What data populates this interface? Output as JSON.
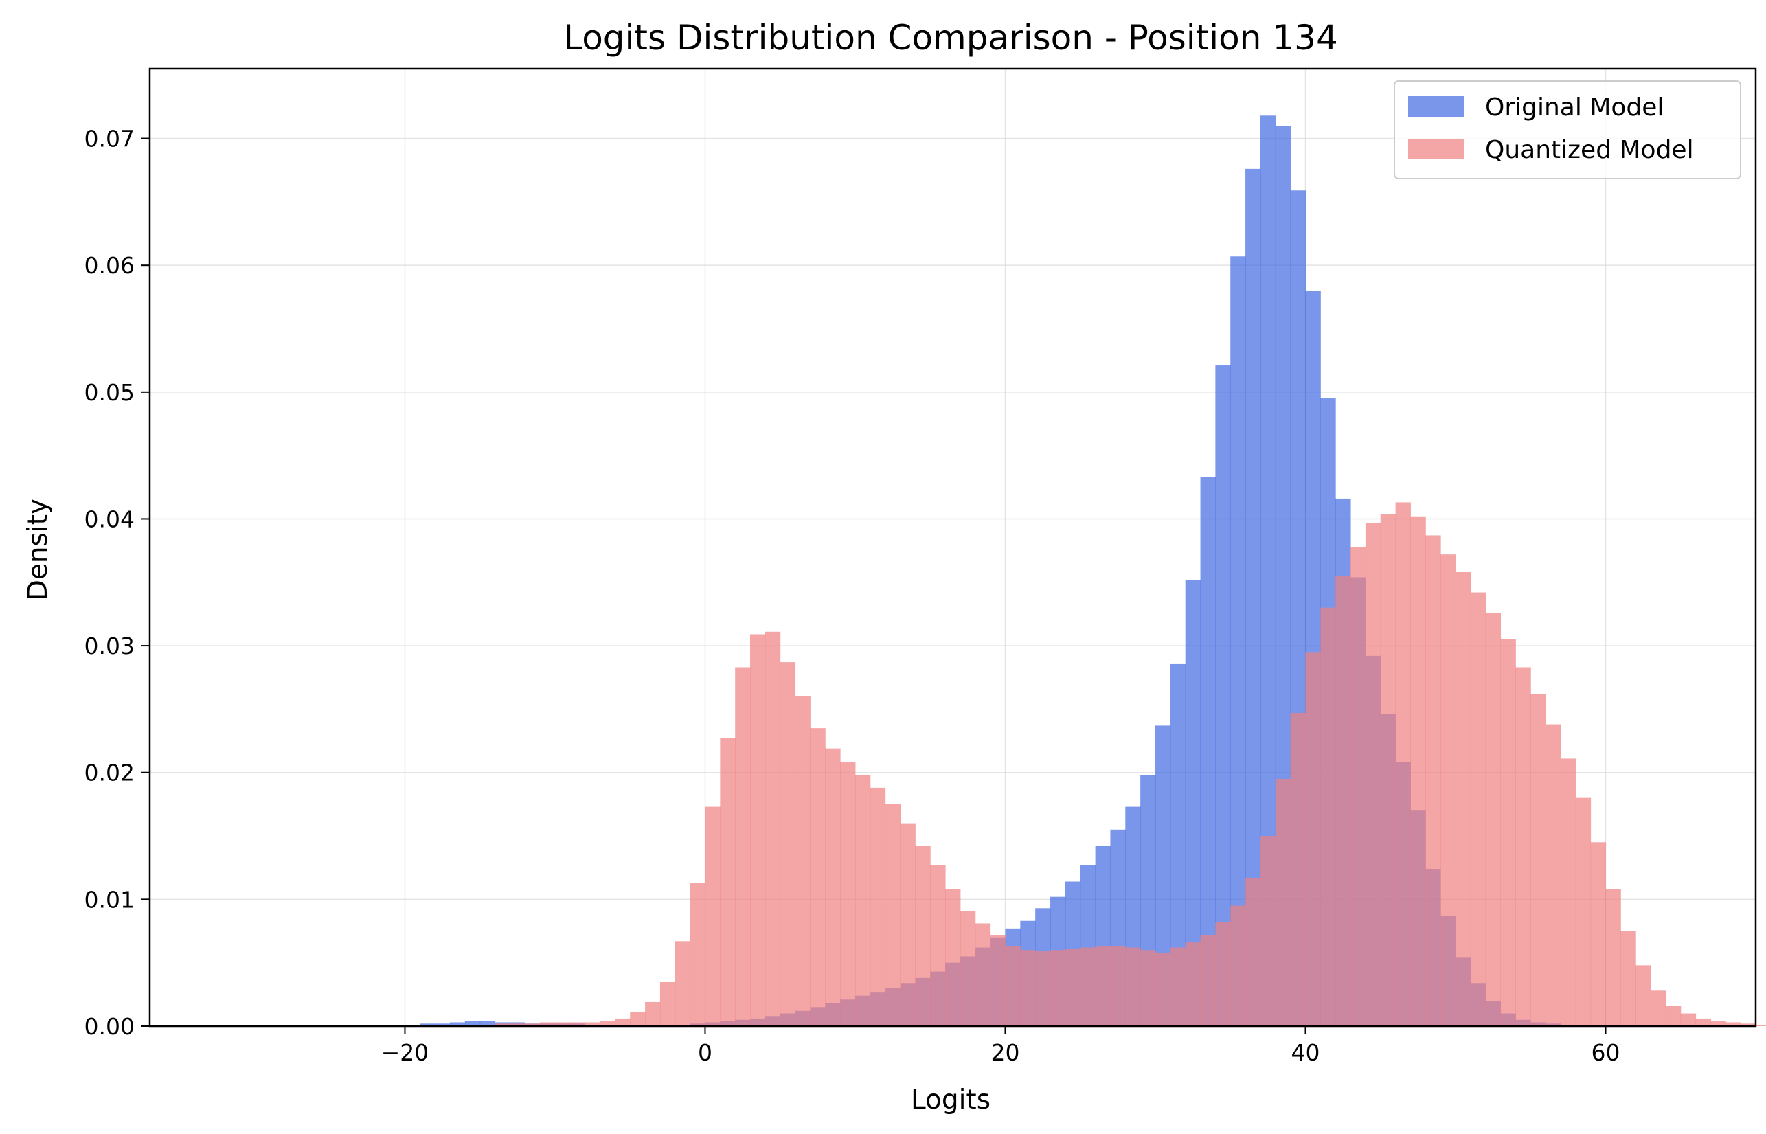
{
  "chart_data": {
    "type": "histogram",
    "title": "Logits Distribution Comparison - Position 134",
    "xlabel": "Logits",
    "ylabel": "Density",
    "xlim": [
      -37,
      70
    ],
    "ylim": [
      0,
      0.0755
    ],
    "x_ticks": [
      -20,
      0,
      20,
      40,
      60
    ],
    "x_tick_labels": [
      "−20",
      "0",
      "20",
      "40",
      "60"
    ],
    "y_ticks": [
      0.0,
      0.01,
      0.02,
      0.03,
      0.04,
      0.05,
      0.06,
      0.07
    ],
    "y_tick_labels": [
      "0.00",
      "0.01",
      "0.02",
      "0.03",
      "0.04",
      "0.05",
      "0.06",
      "0.07"
    ],
    "grid": true,
    "legend_position": "upper right",
    "colors": {
      "original": "#4169e1",
      "quantized": "#f08080",
      "original_alpha": 0.7,
      "quantized_alpha": 0.7
    },
    "series": [
      {
        "name": "Original Model",
        "bins": [
          [
            -20,
            0.0001
          ],
          [
            -19,
            0.0002
          ],
          [
            -18,
            0.0002
          ],
          [
            -17,
            0.0003
          ],
          [
            -16,
            0.0004
          ],
          [
            -15,
            0.0004
          ],
          [
            -14,
            0.0003
          ],
          [
            -13,
            0.0003
          ],
          [
            -12,
            0.0002
          ],
          [
            -11,
            0.0002
          ],
          [
            -10,
            0.0002
          ],
          [
            -9,
            0.0002
          ],
          [
            -8,
            0.0001
          ],
          [
            -7,
            0.0001
          ],
          [
            -6,
            0.0001
          ],
          [
            -5,
            0.0001
          ],
          [
            -4,
            0.0001
          ],
          [
            -3,
            0.0001
          ],
          [
            -2,
            0.0001
          ],
          [
            -1,
            0.0002
          ],
          [
            0,
            0.0003
          ],
          [
            1,
            0.0004
          ],
          [
            2,
            0.0005
          ],
          [
            3,
            0.0006
          ],
          [
            4,
            0.0008
          ],
          [
            5,
            0.001
          ],
          [
            6,
            0.0012
          ],
          [
            7,
            0.0015
          ],
          [
            8,
            0.0018
          ],
          [
            9,
            0.0021
          ],
          [
            10,
            0.0024
          ],
          [
            11,
            0.0027
          ],
          [
            12,
            0.003
          ],
          [
            13,
            0.0034
          ],
          [
            14,
            0.0038
          ],
          [
            15,
            0.0043
          ],
          [
            16,
            0.005
          ],
          [
            17,
            0.0055
          ],
          [
            18,
            0.0062
          ],
          [
            19,
            0.007
          ],
          [
            20,
            0.0077
          ],
          [
            21,
            0.0083
          ],
          [
            22,
            0.0093
          ],
          [
            23,
            0.0102
          ],
          [
            24,
            0.0114
          ],
          [
            25,
            0.0127
          ],
          [
            26,
            0.0142
          ],
          [
            27,
            0.0155
          ],
          [
            28,
            0.0173
          ],
          [
            29,
            0.0198
          ],
          [
            30,
            0.0237
          ],
          [
            31,
            0.0286
          ],
          [
            32,
            0.0352
          ],
          [
            33,
            0.0433
          ],
          [
            34,
            0.0521
          ],
          [
            35,
            0.0607
          ],
          [
            36,
            0.0676
          ],
          [
            37,
            0.0718
          ],
          [
            38,
            0.071
          ],
          [
            39,
            0.0659
          ],
          [
            40,
            0.058
          ],
          [
            41,
            0.0495
          ],
          [
            42,
            0.0416
          ],
          [
            43,
            0.0354
          ],
          [
            44,
            0.0292
          ],
          [
            45,
            0.0246
          ],
          [
            46,
            0.0208
          ],
          [
            47,
            0.017
          ],
          [
            48,
            0.0124
          ],
          [
            49,
            0.0087
          ],
          [
            50,
            0.0054
          ],
          [
            51,
            0.0034
          ],
          [
            52,
            0.002
          ],
          [
            53,
            0.001
          ],
          [
            54,
            0.0005
          ],
          [
            55,
            0.0003
          ],
          [
            56,
            0.0002
          ],
          [
            57,
            0.0001
          ],
          [
            58,
            0.0001
          ]
        ]
      },
      {
        "name": "Quantized Model",
        "bins": [
          [
            -17,
            0.0001
          ],
          [
            -16,
            0.0001
          ],
          [
            -15,
            0.0001
          ],
          [
            -14,
            0.0002
          ],
          [
            -13,
            0.0002
          ],
          [
            -12,
            0.0002
          ],
          [
            -11,
            0.0003
          ],
          [
            -10,
            0.0003
          ],
          [
            -9,
            0.0003
          ],
          [
            -8,
            0.0003
          ],
          [
            -7,
            0.0004
          ],
          [
            -6,
            0.0006
          ],
          [
            -5,
            0.0011
          ],
          [
            -4,
            0.0019
          ],
          [
            -3,
            0.0035
          ],
          [
            -2,
            0.0067
          ],
          [
            -1,
            0.0113
          ],
          [
            0,
            0.0173
          ],
          [
            1,
            0.0227
          ],
          [
            2,
            0.0283
          ],
          [
            3,
            0.0309
          ],
          [
            4,
            0.0311
          ],
          [
            5,
            0.0287
          ],
          [
            6,
            0.026
          ],
          [
            7,
            0.0235
          ],
          [
            8,
            0.0219
          ],
          [
            9,
            0.0208
          ],
          [
            10,
            0.0198
          ],
          [
            11,
            0.0188
          ],
          [
            12,
            0.0175
          ],
          [
            13,
            0.016
          ],
          [
            14,
            0.0142
          ],
          [
            15,
            0.0127
          ],
          [
            16,
            0.0108
          ],
          [
            17,
            0.0091
          ],
          [
            18,
            0.0081
          ],
          [
            19,
            0.0072
          ],
          [
            20,
            0.0063
          ],
          [
            21,
            0.006
          ],
          [
            22,
            0.0059
          ],
          [
            23,
            0.006
          ],
          [
            24,
            0.0061
          ],
          [
            25,
            0.0062
          ],
          [
            26,
            0.0063
          ],
          [
            27,
            0.0063
          ],
          [
            28,
            0.0062
          ],
          [
            29,
            0.006
          ],
          [
            30,
            0.0058
          ],
          [
            31,
            0.0062
          ],
          [
            32,
            0.0066
          ],
          [
            33,
            0.0072
          ],
          [
            34,
            0.0082
          ],
          [
            35,
            0.0095
          ],
          [
            36,
            0.0117
          ],
          [
            37,
            0.015
          ],
          [
            38,
            0.0195
          ],
          [
            39,
            0.0247
          ],
          [
            40,
            0.0295
          ],
          [
            41,
            0.033
          ],
          [
            42,
            0.0355
          ],
          [
            43,
            0.0378
          ],
          [
            44,
            0.0397
          ],
          [
            45,
            0.0404
          ],
          [
            46,
            0.0413
          ],
          [
            47,
            0.0402
          ],
          [
            48,
            0.0387
          ],
          [
            49,
            0.0372
          ],
          [
            50,
            0.0358
          ],
          [
            51,
            0.0342
          ],
          [
            52,
            0.0326
          ],
          [
            53,
            0.0305
          ],
          [
            54,
            0.0283
          ],
          [
            55,
            0.0262
          ],
          [
            56,
            0.0238
          ],
          [
            57,
            0.0211
          ],
          [
            58,
            0.018
          ],
          [
            59,
            0.0145
          ],
          [
            60,
            0.0108
          ],
          [
            61,
            0.0075
          ],
          [
            62,
            0.0048
          ],
          [
            63,
            0.0028
          ],
          [
            64,
            0.0016
          ],
          [
            65,
            0.001
          ],
          [
            66,
            0.0006
          ],
          [
            67,
            0.0004
          ],
          [
            68,
            0.0003
          ],
          [
            69,
            0.0002
          ],
          [
            70,
            0.0001
          ]
        ]
      }
    ]
  }
}
